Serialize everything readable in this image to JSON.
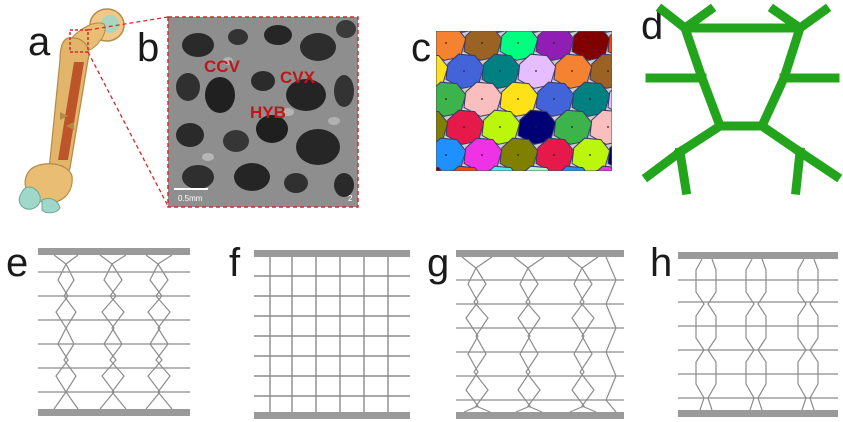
{
  "panels": {
    "a": {
      "letter": "a"
    },
    "b": {
      "letter": "b",
      "labels": {
        "ccv": "CCV",
        "cvx": "CVX",
        "hyb": "HYB"
      },
      "scale_bar": "0.5mm",
      "corner_mark": "2"
    },
    "c": {
      "letter": "c"
    },
    "d": {
      "letter": "d"
    },
    "e": {
      "letter": "e"
    },
    "f": {
      "letter": "f"
    },
    "g": {
      "letter": "g"
    },
    "h": {
      "letter": "h"
    }
  },
  "colors": {
    "sem_label": "#c0161a",
    "dashed_frame": "#d42a2a",
    "skeleton_green": "#22a51d",
    "lattice_line": "#8c8c8c",
    "plate": "#9a9a9a",
    "bone_shaft": "#e3b56a",
    "bone_marrow": "#b5451f",
    "bone_cartilage": "#9fd7c9"
  },
  "voronoi_cell_colors": [
    "#e6194b",
    "#3cb44b",
    "#4363d8",
    "#f58231",
    "#911eb4",
    "#46f0f0",
    "#f032e6",
    "#bcf60c",
    "#fabebe",
    "#008080",
    "#9a6324",
    "#800000",
    "#aaffc3",
    "#808000",
    "#000075",
    "#ffe119",
    "#e6beff",
    "#00ff7f",
    "#ff4500",
    "#1e90ff"
  ]
}
